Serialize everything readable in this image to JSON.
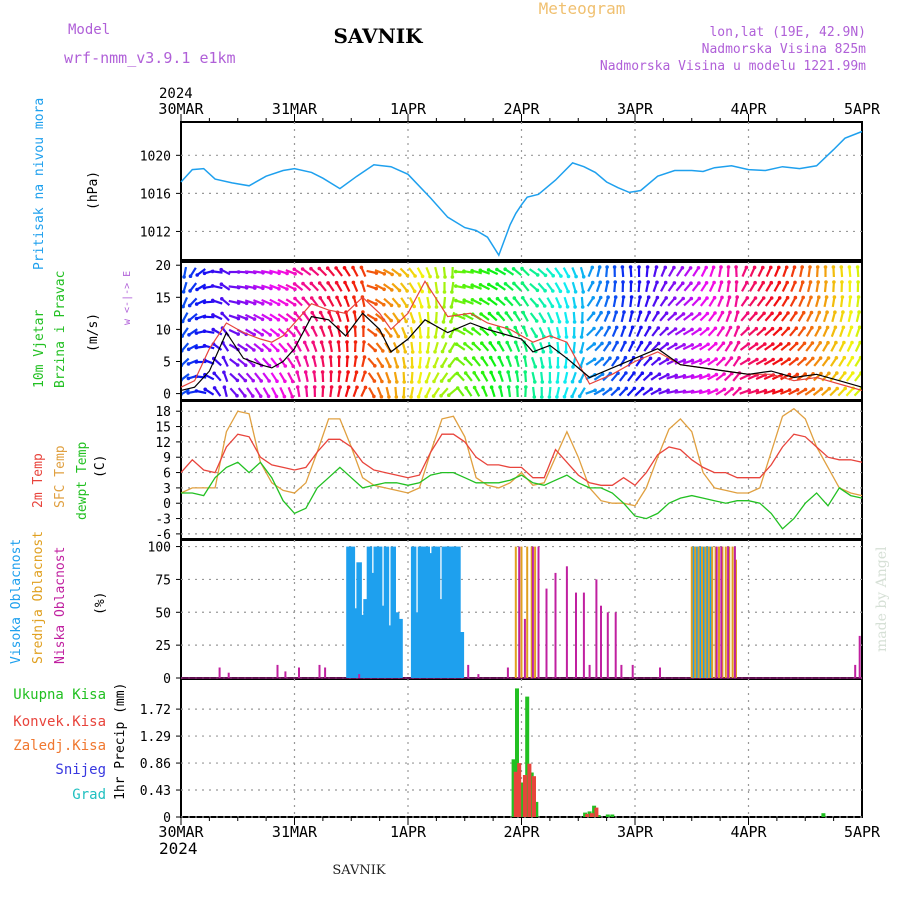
{
  "header": {
    "model_label": "Model",
    "model_name": "wrf-nmm_v3.9.1  e1km",
    "station": "SAVNIK",
    "product": "Meteogram",
    "lonlat": "lon,lat (19E, 42.9N)",
    "altitude": "Nadmorska Visina 825m",
    "model_altitude": "Nadmorska Visina u modelu 1221.99m",
    "footer_station": "SAVNIK",
    "credit": "made by Angel"
  },
  "time_axis": {
    "year": "2024",
    "labels": [
      "30MAR",
      "31MAR",
      "1APR",
      "2APR",
      "3APR",
      "4APR",
      "5APR"
    ]
  },
  "colors": {
    "pressure": "#1ea0ee",
    "temp2m": "#e8443c",
    "sfc": "#e0a040",
    "dewpt": "#22c022",
    "high_cloud": "#1ea0ee",
    "mid_cloud": "#e0a020",
    "low_cloud": "#c020a0",
    "wind_speed": "#000000",
    "wind_gust": "#e8443c"
  },
  "panels": {
    "pressure": {
      "ylabel_main": "Pritisak na nivou mora",
      "unit": "(hPa)",
      "ticks": [
        "1012",
        "1016",
        "1020"
      ]
    },
    "wind": {
      "ylabel_line1": "10m Vjetar",
      "ylabel_line2": "Brzina i Pravac",
      "unit": "(m/s)",
      "ticks": [
        "0",
        "5",
        "10",
        "15",
        "20"
      ],
      "compass": "w <-|-> E"
    },
    "temperature": {
      "label_temp": "2m Temp",
      "label_sfc": "SFC Temp",
      "label_dew": "dewpt Temp",
      "unit": "(C)",
      "ticks": [
        "-6",
        "-3",
        "0",
        "3",
        "6",
        "9",
        "12",
        "15",
        "18"
      ]
    },
    "clouds": {
      "label_high": "Visoka Oblacnost",
      "label_mid": "Srednja Oblacnost",
      "label_low": "Niska Oblacnost",
      "unit": "(%)",
      "ticks": [
        "0",
        "25",
        "50",
        "75",
        "100"
      ]
    },
    "precip": {
      "legend": [
        "Ukupna Kisa",
        "Konvek.Kisa",
        "Zaledj.Kisa",
        "Snijeg",
        "Grad"
      ],
      "legend_colors": [
        "#22c022",
        "#e8443c",
        "#f07830",
        "#3838e0",
        "#20c0c0"
      ],
      "ylabel": "1hr Precip (mm)",
      "ticks": [
        "0",
        "0.43",
        "0.86",
        "1.29",
        "1.72"
      ]
    }
  },
  "chart_data": [
    {
      "type": "line",
      "title": "",
      "ylabel": "Pritisak na nivou mora (hPa)",
      "ylim": [
        1009,
        1023.5
      ],
      "xlim_days": [
        0,
        6
      ],
      "series": [
        {
          "name": "Pritisak na nivou mora",
          "x": [
            0,
            0.1,
            0.2,
            0.3,
            0.45,
            0.6,
            0.75,
            0.9,
            1.0,
            1.15,
            1.25,
            1.4,
            1.55,
            1.7,
            1.85,
            2.0,
            2.2,
            2.35,
            2.5,
            2.6,
            2.7,
            2.8,
            2.9,
            2.95,
            3.0,
            3.05,
            3.15,
            3.3,
            3.45,
            3.55,
            3.65,
            3.75,
            3.85,
            3.95,
            4.05,
            4.2,
            4.35,
            4.5,
            4.6,
            4.7,
            4.85,
            5.0,
            5.15,
            5.3,
            5.45,
            5.6,
            5.75,
            5.85,
            6.0
          ],
          "y": [
            1017.2,
            1018.5,
            1018.6,
            1017.5,
            1017.1,
            1016.8,
            1017.8,
            1018.4,
            1018.6,
            1018.2,
            1017.6,
            1016.5,
            1017.8,
            1019.0,
            1018.8,
            1018.0,
            1015.5,
            1013.5,
            1012.4,
            1012.1,
            1011.4,
            1009.5,
            1012.7,
            1013.9,
            1014.8,
            1015.6,
            1015.9,
            1017.4,
            1019.2,
            1018.8,
            1018.2,
            1017.2,
            1016.6,
            1016.1,
            1016.3,
            1017.8,
            1018.4,
            1018.4,
            1018.3,
            1018.7,
            1018.9,
            1018.5,
            1018.4,
            1018.8,
            1018.6,
            1018.9,
            1020.6,
            1021.8,
            1022.5
          ]
        }
      ]
    },
    {
      "type": "line",
      "title": "",
      "ylabel": "10m Vjetar Brzina i Pravac (m/s)",
      "ylim": [
        -1,
        20.5
      ],
      "xlim_days": [
        0,
        6
      ],
      "series": [
        {
          "name": "",
          "x": [
            0,
            0.12,
            0.25,
            0.4,
            0.55,
            0.7,
            0.8,
            0.9,
            1.0,
            1.15,
            1.3,
            1.45,
            1.6,
            1.75,
            1.85,
            2.0,
            2.15,
            2.35,
            2.55,
            2.7,
            2.9,
            3.0,
            3.1,
            3.25,
            3.4,
            3.6,
            3.8,
            4.0,
            4.2,
            4.4,
            4.6,
            4.8,
            5.0,
            5.2,
            5.4,
            5.6,
            5.8,
            6.0
          ],
          "y": [
            0.5,
            1.0,
            3.5,
            9.5,
            5.5,
            4.5,
            4.0,
            5.0,
            7.0,
            12.0,
            11.5,
            9.0,
            12.5,
            10.0,
            6.5,
            8.5,
            11.5,
            9.5,
            11.0,
            10.0,
            9.0,
            8.5,
            6.5,
            7.5,
            5.5,
            2.5,
            4.0,
            5.5,
            7.0,
            4.5,
            4.0,
            3.5,
            3.0,
            3.5,
            2.5,
            3.0,
            2.0,
            1.0
          ]
        },
        {
          "name": "",
          "x": [
            0,
            0.12,
            0.25,
            0.4,
            0.55,
            0.7,
            0.8,
            0.9,
            1.0,
            1.15,
            1.3,
            1.45,
            1.6,
            1.75,
            1.85,
            2.0,
            2.15,
            2.35,
            2.55,
            2.7,
            2.9,
            3.0,
            3.1,
            3.25,
            3.4,
            3.6,
            3.8,
            4.0,
            4.2,
            4.4,
            4.6,
            4.8,
            5.0,
            5.2,
            5.4,
            5.6,
            5.8,
            6.0
          ],
          "y": [
            1.0,
            2.0,
            7.0,
            11.0,
            9.5,
            8.5,
            8.0,
            9.0,
            11.0,
            14.0,
            13.0,
            12.5,
            15.0,
            12.5,
            10.0,
            12.5,
            17.5,
            12.0,
            12.5,
            11.0,
            10.0,
            9.0,
            8.0,
            9.0,
            8.0,
            1.5,
            3.0,
            5.0,
            6.5,
            4.5,
            4.0,
            3.5,
            3.0,
            3.0,
            2.0,
            2.5,
            1.5,
            0.5
          ]
        }
      ]
    },
    {
      "type": "line",
      "title": "",
      "ylabel": "Temperature (C)",
      "ylim": [
        -7,
        20
      ],
      "xlim_days": [
        0,
        6
      ],
      "series": [
        {
          "name": "2m Temp",
          "x": [
            0,
            0.1,
            0.2,
            0.3,
            0.4,
            0.5,
            0.6,
            0.7,
            0.8,
            0.9,
            1.0,
            1.1,
            1.2,
            1.3,
            1.4,
            1.5,
            1.6,
            1.7,
            1.8,
            1.9,
            2.0,
            2.1,
            2.2,
            2.3,
            2.4,
            2.5,
            2.6,
            2.7,
            2.8,
            2.9,
            3.0,
            3.1,
            3.2,
            3.3,
            3.4,
            3.5,
            3.6,
            3.7,
            3.8,
            3.9,
            4.0,
            4.1,
            4.2,
            4.3,
            4.4,
            4.5,
            4.6,
            4.7,
            4.8,
            4.9,
            5.0,
            5.1,
            5.2,
            5.3,
            5.4,
            5.5,
            5.6,
            5.7,
            5.8,
            5.9,
            6.0
          ],
          "y": [
            6,
            8.5,
            6.5,
            6,
            11,
            13.5,
            13,
            9,
            7.5,
            7,
            6.5,
            7,
            10,
            12.5,
            12.5,
            11,
            8,
            6.5,
            6,
            5.5,
            5,
            5.5,
            10,
            13.5,
            13.5,
            12,
            9,
            7.5,
            7.5,
            7,
            7,
            5,
            5,
            10.5,
            8,
            5.5,
            4,
            3.5,
            3.5,
            5,
            3.5,
            6,
            9.5,
            11,
            10.5,
            8.5,
            7,
            6,
            6,
            5,
            5,
            5,
            7.5,
            11,
            13.5,
            13,
            11,
            9,
            8.5,
            8.5,
            8
          ]
        },
        {
          "name": "SFC Temp",
          "x": [
            0,
            0.1,
            0.2,
            0.3,
            0.4,
            0.5,
            0.6,
            0.7,
            0.8,
            0.9,
            1.0,
            1.1,
            1.2,
            1.3,
            1.4,
            1.5,
            1.6,
            1.7,
            1.8,
            1.9,
            2.0,
            2.1,
            2.2,
            2.3,
            2.4,
            2.5,
            2.6,
            2.7,
            2.8,
            2.9,
            3.0,
            3.1,
            3.2,
            3.3,
            3.4,
            3.5,
            3.6,
            3.7,
            3.8,
            3.9,
            4.0,
            4.1,
            4.2,
            4.3,
            4.4,
            4.5,
            4.6,
            4.7,
            4.8,
            4.9,
            5.0,
            5.1,
            5.2,
            5.3,
            5.4,
            5.5,
            5.6,
            5.7,
            5.8,
            5.9,
            6.0
          ],
          "y": [
            2,
            3,
            3,
            3,
            14,
            18,
            17.5,
            8,
            4,
            2.5,
            2,
            4,
            10,
            16.5,
            16.5,
            11,
            5,
            3.5,
            3,
            2.5,
            2,
            3,
            10,
            16.5,
            17,
            13,
            5,
            3.5,
            3,
            4,
            6,
            3.5,
            4,
            9,
            14,
            9,
            3,
            0.5,
            0,
            0,
            -0.5,
            3,
            9,
            14.5,
            16.5,
            14,
            6,
            3,
            2.5,
            2,
            2,
            3,
            10,
            17,
            18.5,
            16.5,
            11,
            7,
            3,
            2,
            1.5
          ]
        },
        {
          "name": "dewpt Temp",
          "x": [
            0,
            0.1,
            0.2,
            0.3,
            0.4,
            0.5,
            0.6,
            0.7,
            0.8,
            0.9,
            1.0,
            1.1,
            1.2,
            1.3,
            1.4,
            1.5,
            1.6,
            1.7,
            1.8,
            1.9,
            2.0,
            2.1,
            2.2,
            2.3,
            2.4,
            2.5,
            2.6,
            2.7,
            2.8,
            2.9,
            3.0,
            3.1,
            3.2,
            3.3,
            3.4,
            3.5,
            3.6,
            3.7,
            3.8,
            3.9,
            4.0,
            4.1,
            4.2,
            4.3,
            4.4,
            4.5,
            4.6,
            4.7,
            4.8,
            4.9,
            5.0,
            5.1,
            5.2,
            5.3,
            5.4,
            5.5,
            5.6,
            5.7,
            5.8,
            5.9,
            6.0
          ],
          "y": [
            2,
            2,
            1.5,
            5,
            7,
            8,
            6,
            8,
            5,
            0.5,
            -2,
            -1,
            3,
            5,
            7,
            5,
            3,
            3.5,
            4,
            4,
            3.5,
            4,
            5.5,
            6,
            6,
            5,
            4,
            4,
            4,
            4.5,
            5.5,
            4,
            3.5,
            4.5,
            5.5,
            4,
            3,
            3,
            2,
            0,
            -2.5,
            -3,
            -2,
            0,
            1,
            1.5,
            1,
            0.5,
            0,
            0.5,
            0.5,
            0,
            -2,
            -5,
            -3,
            0,
            2,
            -0.5,
            3,
            1.5,
            1
          ]
        }
      ]
    },
    {
      "type": "bar",
      "title": "",
      "ylabel": "Oblacnost (%)",
      "ylim": [
        0,
        105
      ],
      "xlim_days": [
        0,
        6
      ],
      "series": [
        {
          "name": "Visoka Oblacnost",
          "x": [
            1.48,
            1.51,
            1.54,
            1.57,
            1.6,
            1.63,
            1.66,
            1.69,
            1.72,
            1.75,
            1.78,
            1.81,
            1.84,
            1.87,
            1.9,
            1.93,
            2.05,
            2.08,
            2.11,
            2.14,
            2.17,
            2.2,
            2.23,
            2.26,
            2.29,
            2.32,
            2.35,
            2.38,
            2.41,
            2.44,
            2.47,
            4.53,
            4.56,
            4.59,
            4.62,
            4.65
          ],
          "y": [
            100,
            100,
            53,
            88,
            48,
            60,
            100,
            80,
            100,
            100,
            55,
            100,
            40,
            100,
            50,
            45,
            100,
            50,
            100,
            100,
            100,
            95,
            100,
            100,
            60,
            100,
            100,
            100,
            100,
            100,
            35,
            100,
            100,
            100,
            90,
            100
          ]
        },
        {
          "name": "Srednja Oblacnost",
          "x": [
            2.95,
            3.0,
            3.05,
            3.09,
            3.12,
            4.5,
            4.53,
            4.56,
            4.59,
            4.62,
            4.65,
            4.68,
            4.71,
            4.74,
            4.77,
            4.8,
            4.83,
            4.86,
            4.89
          ],
          "y": [
            100,
            100,
            100,
            100,
            100,
            100,
            100,
            100,
            100,
            100,
            100,
            100,
            100,
            100,
            100,
            100,
            100,
            100,
            90
          ]
        },
        {
          "name": "Niska Oblacnost",
          "x": [
            0.34,
            0.42,
            0.85,
            0.92,
            1.04,
            1.22,
            1.27,
            1.57,
            2.53,
            2.62,
            2.88,
            2.98,
            3.03,
            3.1,
            3.15,
            3.22,
            3.3,
            3.4,
            3.48,
            3.55,
            3.6,
            3.66,
            3.7,
            3.76,
            3.83,
            3.88,
            3.98,
            4.22,
            4.72,
            4.76,
            4.82,
            4.88,
            5.94,
            5.98
          ],
          "y": [
            8,
            4,
            10,
            5,
            8,
            10,
            8,
            3,
            10,
            3,
            8,
            100,
            45,
            100,
            100,
            68,
            80,
            85,
            65,
            65,
            10,
            75,
            55,
            50,
            50,
            10,
            10,
            8,
            100,
            100,
            100,
            100,
            10,
            32
          ]
        }
      ]
    },
    {
      "type": "bar",
      "title": "",
      "ylabel": "1hr Precip (mm)",
      "ylim": [
        0,
        2.2
      ],
      "xlim_days": [
        0,
        6
      ],
      "series": [
        {
          "name": "Ukupna Kisa",
          "x": [
            2.93,
            2.96,
            3.0,
            3.05,
            3.09,
            3.13,
            3.56,
            3.6,
            3.64,
            3.68,
            3.76,
            3.8,
            5.66
          ],
          "y": [
            0.92,
            2.05,
            0.55,
            1.92,
            0.71,
            0.24,
            0.07,
            0.09,
            0.18,
            0.03,
            0.04,
            0.04,
            0.06
          ]
        },
        {
          "name": "Konvek.Kisa",
          "x": [
            2.95,
            2.98,
            3.03,
            3.07,
            3.11,
            3.58,
            3.62,
            3.66
          ],
          "y": [
            0.72,
            0.86,
            0.67,
            0.85,
            0.65,
            0.05,
            0.06,
            0.15
          ]
        }
      ]
    }
  ]
}
